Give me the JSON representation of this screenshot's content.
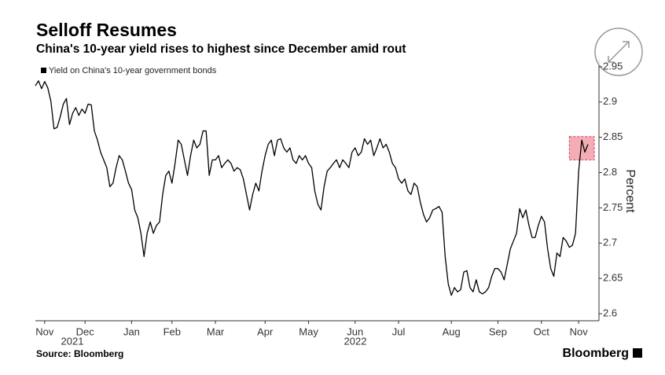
{
  "chart_data": {
    "type": "line",
    "title": "Selloff Resumes",
    "subtitle": "China's 10-year yield rises to highest since December amid rout",
    "y_axis_label": "Percent",
    "source": "Source: Bloomberg",
    "brand": "Bloomberg",
    "years": [
      "2021",
      "2022"
    ],
    "ylim": [
      2.59,
      2.961
    ],
    "yticks": [
      2.6,
      2.65,
      2.7,
      2.75,
      2.8,
      2.85,
      2.9,
      2.95
    ],
    "xlim": [
      0,
      178
    ],
    "xticks": [
      {
        "value": 3,
        "label": "Nov"
      },
      {
        "value": 16,
        "label": "Dec"
      },
      {
        "value": 31,
        "label": "Jan"
      },
      {
        "value": 44,
        "label": "Feb"
      },
      {
        "value": 58,
        "label": "Mar"
      },
      {
        "value": 74,
        "label": "Apr"
      },
      {
        "value": 88,
        "label": "May"
      },
      {
        "value": 103,
        "label": "Jun"
      },
      {
        "value": 117,
        "label": "Jul"
      },
      {
        "value": 134,
        "label": "Aug"
      },
      {
        "value": 149,
        "label": "Sep"
      },
      {
        "value": 163,
        "label": "Oct"
      },
      {
        "value": 175,
        "label": "Nov"
      }
    ],
    "grid": false,
    "highlight": {
      "x": [
        172,
        178
      ],
      "y": [
        2.818,
        2.851
      ],
      "color": "#f08a96"
    },
    "series": [
      {
        "name": "Yield on China's 10-year government bonds",
        "color": "#000000",
        "values": [
          2.923,
          2.93,
          2.919,
          2.929,
          2.92,
          2.901,
          2.862,
          2.864,
          2.879,
          2.897,
          2.905,
          2.868,
          2.884,
          2.892,
          2.881,
          2.89,
          2.884,
          2.897,
          2.896,
          2.859,
          2.846,
          2.829,
          2.818,
          2.807,
          2.78,
          2.785,
          2.807,
          2.824,
          2.818,
          2.802,
          2.785,
          2.776,
          2.747,
          2.736,
          2.714,
          2.681,
          2.714,
          2.73,
          2.714,
          2.725,
          2.73,
          2.769,
          2.796,
          2.802,
          2.785,
          2.813,
          2.846,
          2.84,
          2.818,
          2.796,
          2.824,
          2.846,
          2.835,
          2.84,
          2.859,
          2.859,
          2.796,
          2.818,
          2.818,
          2.824,
          2.807,
          2.813,
          2.818,
          2.813,
          2.802,
          2.807,
          2.804,
          2.791,
          2.769,
          2.747,
          2.769,
          2.785,
          2.774,
          2.802,
          2.824,
          2.84,
          2.846,
          2.824,
          2.846,
          2.848,
          2.835,
          2.829,
          2.835,
          2.818,
          2.813,
          2.824,
          2.818,
          2.824,
          2.813,
          2.807,
          2.774,
          2.755,
          2.747,
          2.78,
          2.802,
          2.807,
          2.813,
          2.818,
          2.807,
          2.818,
          2.813,
          2.807,
          2.829,
          2.835,
          2.824,
          2.829,
          2.848,
          2.84,
          2.846,
          2.824,
          2.835,
          2.848,
          2.835,
          2.84,
          2.829,
          2.813,
          2.807,
          2.791,
          2.785,
          2.791,
          2.774,
          2.769,
          2.785,
          2.78,
          2.758,
          2.741,
          2.73,
          2.736,
          2.747,
          2.749,
          2.752,
          2.744,
          2.681,
          2.642,
          2.626,
          2.637,
          2.631,
          2.634,
          2.659,
          2.661,
          2.637,
          2.631,
          2.648,
          2.631,
          2.628,
          2.631,
          2.637,
          2.653,
          2.664,
          2.664,
          2.659,
          2.648,
          2.67,
          2.692,
          2.703,
          2.714,
          2.749,
          2.736,
          2.747,
          2.725,
          2.708,
          2.708,
          2.725,
          2.738,
          2.73,
          2.692,
          2.664,
          2.653,
          2.686,
          2.681,
          2.708,
          2.703,
          2.694,
          2.697,
          2.714,
          2.802,
          2.846,
          2.829,
          2.84
        ]
      }
    ]
  }
}
